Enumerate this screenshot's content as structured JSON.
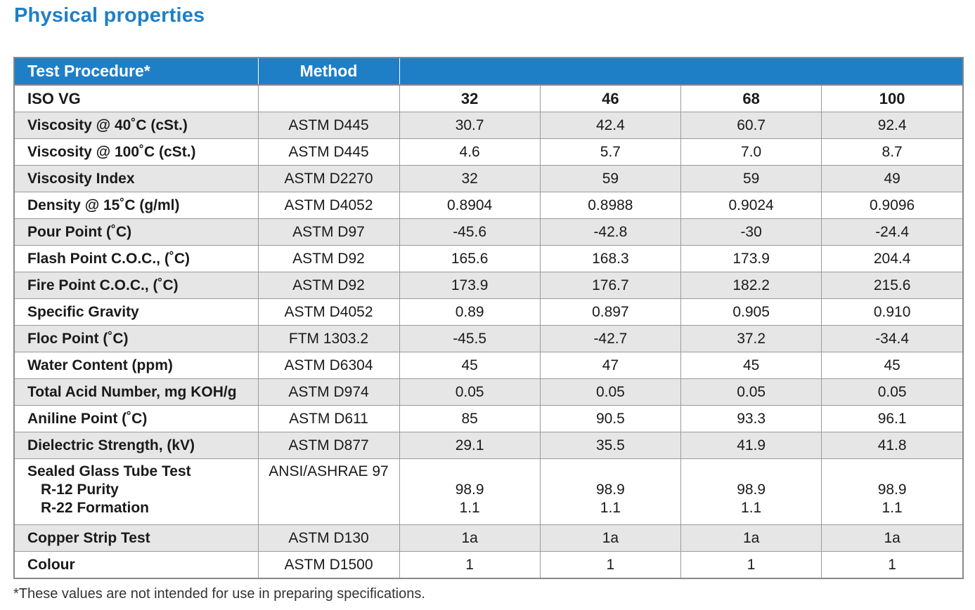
{
  "title": "Physical properties",
  "header": {
    "procedure": "Test Procedure*",
    "method": "Method",
    "values": ""
  },
  "iso_row": {
    "label": "ISO VG",
    "method": "",
    "values": [
      "32",
      "46",
      "68",
      "100"
    ]
  },
  "rows": [
    {
      "label": "Viscosity @ 40˚C (cSt.)",
      "method": "ASTM D445",
      "values": [
        "30.7",
        "42.4",
        "60.7",
        "92.4"
      ]
    },
    {
      "label": "Viscosity @ 100˚C (cSt.)",
      "method": "ASTM D445",
      "values": [
        "4.6",
        "5.7",
        "7.0",
        "8.7"
      ]
    },
    {
      "label": "Viscosity Index",
      "method": "ASTM D2270",
      "values": [
        "32",
        "59",
        "59",
        "49"
      ]
    },
    {
      "label": "Density @ 15˚C (g/ml)",
      "method": "ASTM D4052",
      "values": [
        "0.8904",
        "0.8988",
        "0.9024",
        "0.9096"
      ]
    },
    {
      "label": "Pour Point (˚C)",
      "method": "ASTM D97",
      "values": [
        "-45.6",
        "-42.8",
        "-30",
        "-24.4"
      ]
    },
    {
      "label": "Flash Point C.O.C., (˚C)",
      "method": "ASTM D92",
      "values": [
        "165.6",
        "168.3",
        "173.9",
        "204.4"
      ]
    },
    {
      "label": "Fire Point C.O.C., (˚C)",
      "method": "ASTM D92",
      "values": [
        "173.9",
        "176.7",
        "182.2",
        "215.6"
      ]
    },
    {
      "label": "Specific Gravity",
      "method": "ASTM D4052",
      "values": [
        "0.89",
        "0.897",
        "0.905",
        "0.910"
      ]
    },
    {
      "label": "Floc Point (˚C)",
      "method": "FTM 1303.2",
      "values": [
        "-45.5",
        "-42.7",
        "37.2",
        "-34.4"
      ]
    },
    {
      "label": "Water Content (ppm)",
      "method": "ASTM D6304",
      "values": [
        "45",
        "47",
        "45",
        "45"
      ]
    },
    {
      "label": "Total Acid Number, mg KOH/g",
      "method": "ASTM D974",
      "values": [
        "0.05",
        "0.05",
        "0.05",
        "0.05"
      ]
    },
    {
      "label": "Aniline Point (˚C)",
      "method": "ASTM D611",
      "values": [
        "85",
        "90.5",
        "93.3",
        "96.1"
      ]
    },
    {
      "label": "Dielectric Strength, (kV)",
      "method": "ASTM D877",
      "values": [
        "29.1",
        "35.5",
        "41.9",
        "41.8"
      ]
    }
  ],
  "sealed_row": {
    "label": "Sealed Glass Tube Test",
    "sub_labels": [
      "R-12 Purity",
      "R-22 Formation"
    ],
    "method": "ANSI/ASHRAE 97",
    "values": [
      [
        "98.9",
        "1.1"
      ],
      [
        "98.9",
        "1.1"
      ],
      [
        "98.9",
        "1.1"
      ],
      [
        "98.9",
        "1.1"
      ]
    ]
  },
  "tail_rows": [
    {
      "label": "Copper Strip Test",
      "method": "ASTM D130",
      "values": [
        "1a",
        "1a",
        "1a",
        "1a"
      ]
    },
    {
      "label": "Colour",
      "method": "ASTM D1500",
      "values": [
        "1",
        "1",
        "1",
        "1"
      ]
    }
  ],
  "footnote": "*These values are not intended for use in preparing specifications."
}
